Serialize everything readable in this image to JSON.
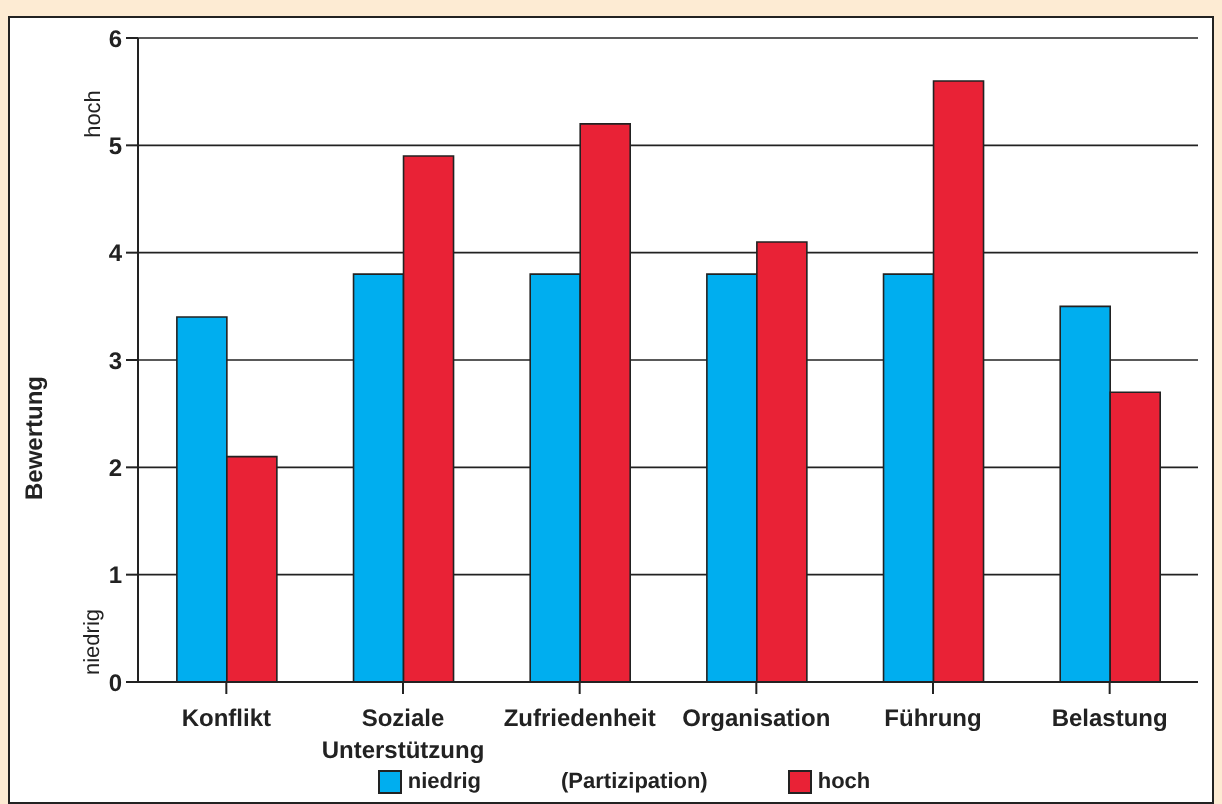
{
  "chart_data": {
    "type": "bar",
    "ylabel": "Bewertung",
    "legend_title": "(Partizipation)",
    "categories": [
      "Konflikt",
      "Soziale Unterstützung",
      "Zufriedenheit",
      "Organisation",
      "Führung",
      "Belastung"
    ],
    "series": [
      {
        "name": "niedrig",
        "color": "#00aeef",
        "values": [
          3.4,
          3.8,
          3.8,
          3.8,
          3.8,
          3.5
        ]
      },
      {
        "name": "hoch",
        "color": "#e92236",
        "values": [
          2.1,
          4.9,
          5.2,
          4.1,
          5.6,
          2.7
        ]
      }
    ],
    "ylim": [
      0,
      6
    ],
    "yticks": [
      0,
      1,
      2,
      3,
      4,
      5,
      6
    ],
    "grid": "y",
    "legend": "bottom",
    "annotations": [
      "hoch",
      "niedrig"
    ]
  }
}
